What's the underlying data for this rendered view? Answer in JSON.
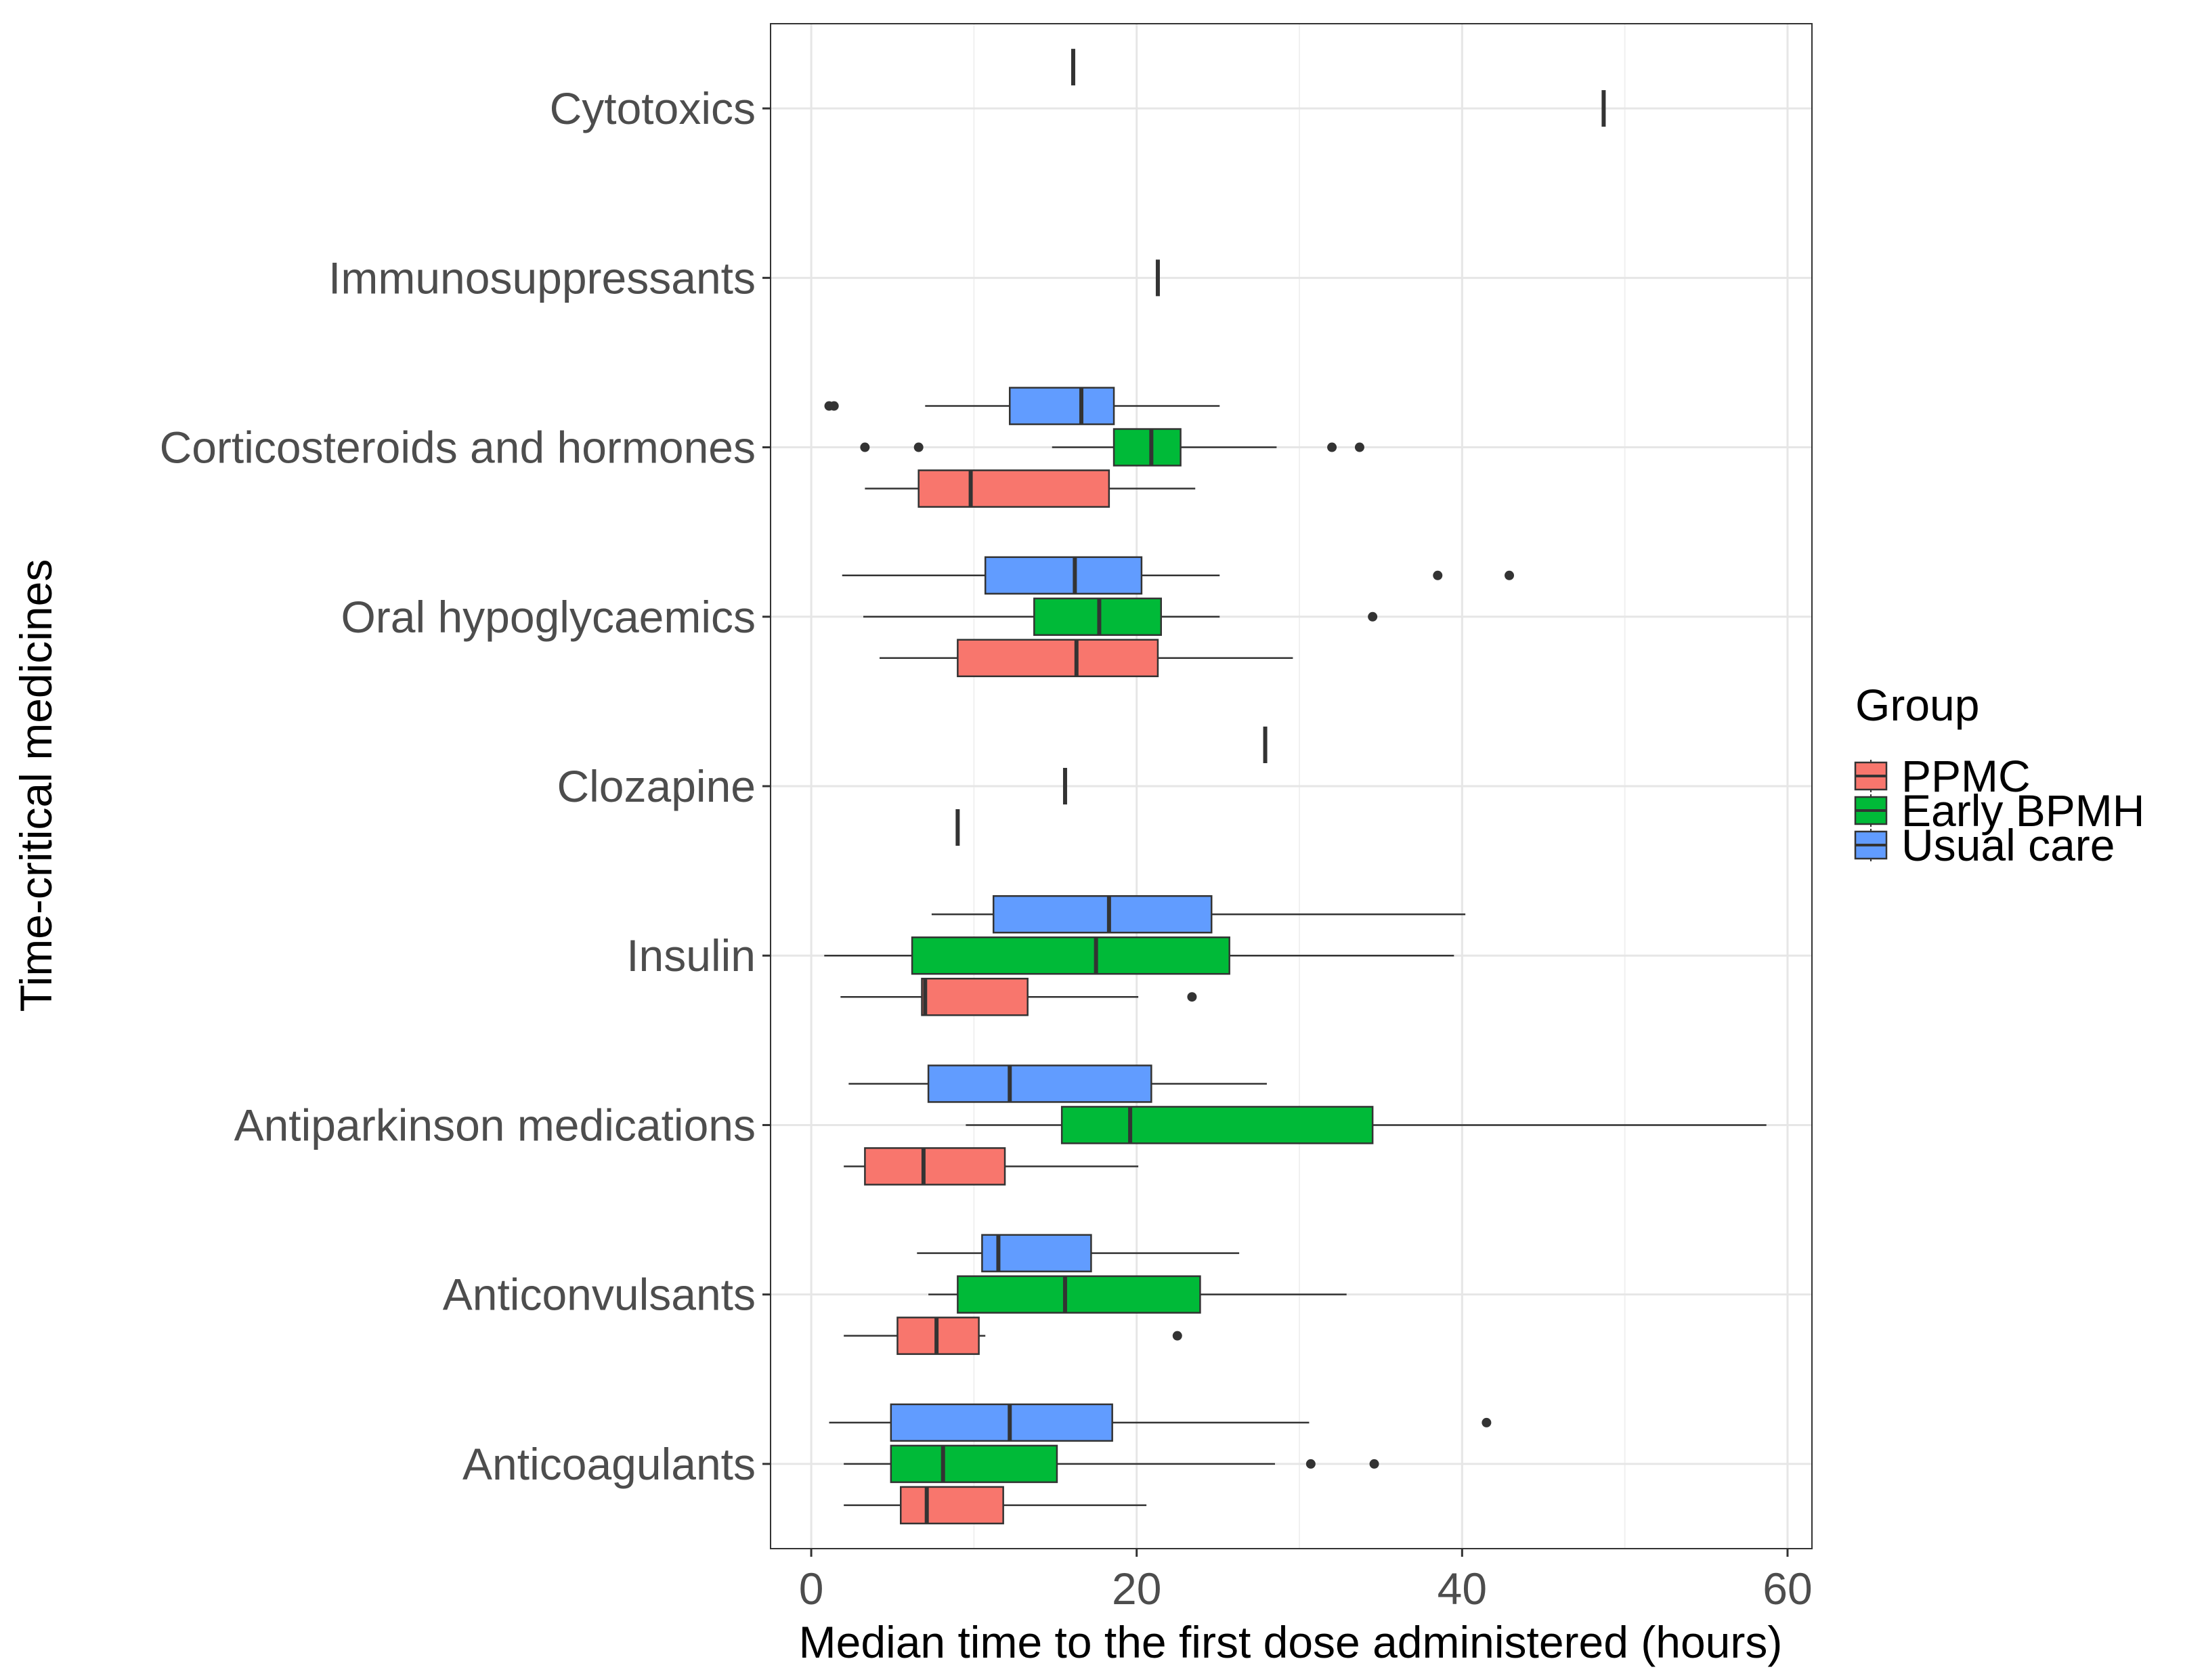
{
  "chart_data": {
    "type": "boxplot",
    "orientation": "horizontal",
    "xlabel": "Median time to the first dose administered (hours)",
    "ylabel": "Time-critical medicines",
    "xlim": [
      -2.5,
      61.5
    ],
    "x_ticks": [
      0,
      20,
      40,
      60
    ],
    "grid": true,
    "legend": {
      "title": "Group",
      "position": "right",
      "entries": [
        {
          "key": "ppmc",
          "label": "PPMC",
          "color": "#F8766D"
        },
        {
          "key": "bpmh",
          "label": "Early BPMH",
          "color": "#00BA38"
        },
        {
          "key": "usual",
          "label": "Usual care",
          "color": "#619CFF"
        }
      ]
    },
    "categories": [
      {
        "name": "Cytotoxics",
        "boxes": [
          {
            "group": "usual",
            "q1": 16.1,
            "median": 16.1,
            "q3": 16.1,
            "wlow": 16.1,
            "whigh": 16.1,
            "outliers": []
          },
          {
            "group": "bpmh",
            "q1": 48.7,
            "median": 48.7,
            "q3": 48.7,
            "wlow": 48.7,
            "whigh": 48.7,
            "outliers": []
          }
        ]
      },
      {
        "name": "Immunosuppressants",
        "boxes": [
          {
            "group": "bpmh",
            "q1": 21.3,
            "median": 21.3,
            "q3": 21.3,
            "wlow": 21.3,
            "whigh": 21.3,
            "outliers": []
          }
        ]
      },
      {
        "name": "Corticosteroids and hormones",
        "boxes": [
          {
            "group": "usual",
            "q1": 12.2,
            "median": 16.6,
            "q3": 18.6,
            "wlow": 7.0,
            "whigh": 25.1,
            "outliers": [
              1.1,
              1.4
            ]
          },
          {
            "group": "bpmh",
            "q1": 18.6,
            "median": 20.9,
            "q3": 22.7,
            "wlow": 14.8,
            "whigh": 28.6,
            "outliers": [
              3.3,
              6.6,
              32.0,
              33.7
            ]
          },
          {
            "group": "ppmc",
            "q1": 6.6,
            "median": 9.8,
            "q3": 18.3,
            "wlow": 3.3,
            "whigh": 23.6,
            "outliers": []
          }
        ]
      },
      {
        "name": "Oral hypoglycaemics",
        "boxes": [
          {
            "group": "usual",
            "q1": 10.7,
            "median": 16.2,
            "q3": 20.3,
            "wlow": 1.9,
            "whigh": 25.1,
            "outliers": [
              38.5,
              42.9
            ]
          },
          {
            "group": "bpmh",
            "q1": 13.7,
            "median": 17.7,
            "q3": 21.5,
            "wlow": 3.2,
            "whigh": 25.1,
            "outliers": [
              34.5
            ]
          },
          {
            "group": "ppmc",
            "q1": 9.0,
            "median": 16.3,
            "q3": 21.3,
            "wlow": 4.2,
            "whigh": 29.6,
            "outliers": []
          }
        ]
      },
      {
        "name": "Clozapine",
        "boxes": [
          {
            "group": "usual",
            "q1": 27.9,
            "median": 27.9,
            "q3": 27.9,
            "wlow": 27.9,
            "whigh": 27.9,
            "outliers": []
          },
          {
            "group": "bpmh",
            "q1": 15.6,
            "median": 15.6,
            "q3": 15.6,
            "wlow": 15.6,
            "whigh": 15.6,
            "outliers": []
          },
          {
            "group": "ppmc",
            "q1": 9.0,
            "median": 9.0,
            "q3": 9.0,
            "wlow": 9.0,
            "whigh": 9.0,
            "outliers": []
          }
        ]
      },
      {
        "name": "Insulin",
        "boxes": [
          {
            "group": "usual",
            "q1": 11.2,
            "median": 18.3,
            "q3": 24.6,
            "wlow": 7.4,
            "whigh": 40.2,
            "outliers": []
          },
          {
            "group": "bpmh",
            "q1": 6.2,
            "median": 17.5,
            "q3": 25.7,
            "wlow": 0.8,
            "whigh": 39.5,
            "outliers": []
          },
          {
            "group": "ppmc",
            "q1": 6.8,
            "median": 7.0,
            "q3": 13.3,
            "wlow": 1.8,
            "whigh": 20.1,
            "outliers": [
              23.4
            ]
          }
        ]
      },
      {
        "name": "Antiparkinson medications",
        "boxes": [
          {
            "group": "usual",
            "q1": 7.2,
            "median": 12.2,
            "q3": 20.9,
            "wlow": 2.3,
            "whigh": 28.0,
            "outliers": []
          },
          {
            "group": "bpmh",
            "q1": 15.4,
            "median": 19.6,
            "q3": 34.5,
            "wlow": 9.5,
            "whigh": 58.7,
            "outliers": []
          },
          {
            "group": "ppmc",
            "q1": 3.3,
            "median": 6.9,
            "q3": 11.9,
            "wlow": 2.0,
            "whigh": 20.1,
            "outliers": []
          }
        ]
      },
      {
        "name": "Anticonvulsants",
        "boxes": [
          {
            "group": "usual",
            "q1": 10.5,
            "median": 11.5,
            "q3": 17.2,
            "wlow": 6.5,
            "whigh": 26.3,
            "outliers": []
          },
          {
            "group": "bpmh",
            "q1": 9.0,
            "median": 15.6,
            "q3": 23.9,
            "wlow": 7.2,
            "whigh": 32.9,
            "outliers": []
          },
          {
            "group": "ppmc",
            "q1": 5.3,
            "median": 7.7,
            "q3": 10.3,
            "wlow": 2.0,
            "whigh": 10.7,
            "outliers": [
              22.5
            ]
          }
        ]
      },
      {
        "name": "Anticoagulants",
        "boxes": [
          {
            "group": "usual",
            "q1": 4.9,
            "median": 12.2,
            "q3": 18.5,
            "wlow": 1.1,
            "whigh": 30.6,
            "outliers": [
              41.5
            ]
          },
          {
            "group": "bpmh",
            "q1": 4.9,
            "median": 8.1,
            "q3": 15.1,
            "wlow": 2.0,
            "whigh": 28.5,
            "outliers": [
              30.7,
              34.6
            ]
          },
          {
            "group": "ppmc",
            "q1": 5.5,
            "median": 7.1,
            "q3": 11.8,
            "wlow": 2.0,
            "whigh": 20.6,
            "outliers": []
          }
        ]
      }
    ]
  }
}
